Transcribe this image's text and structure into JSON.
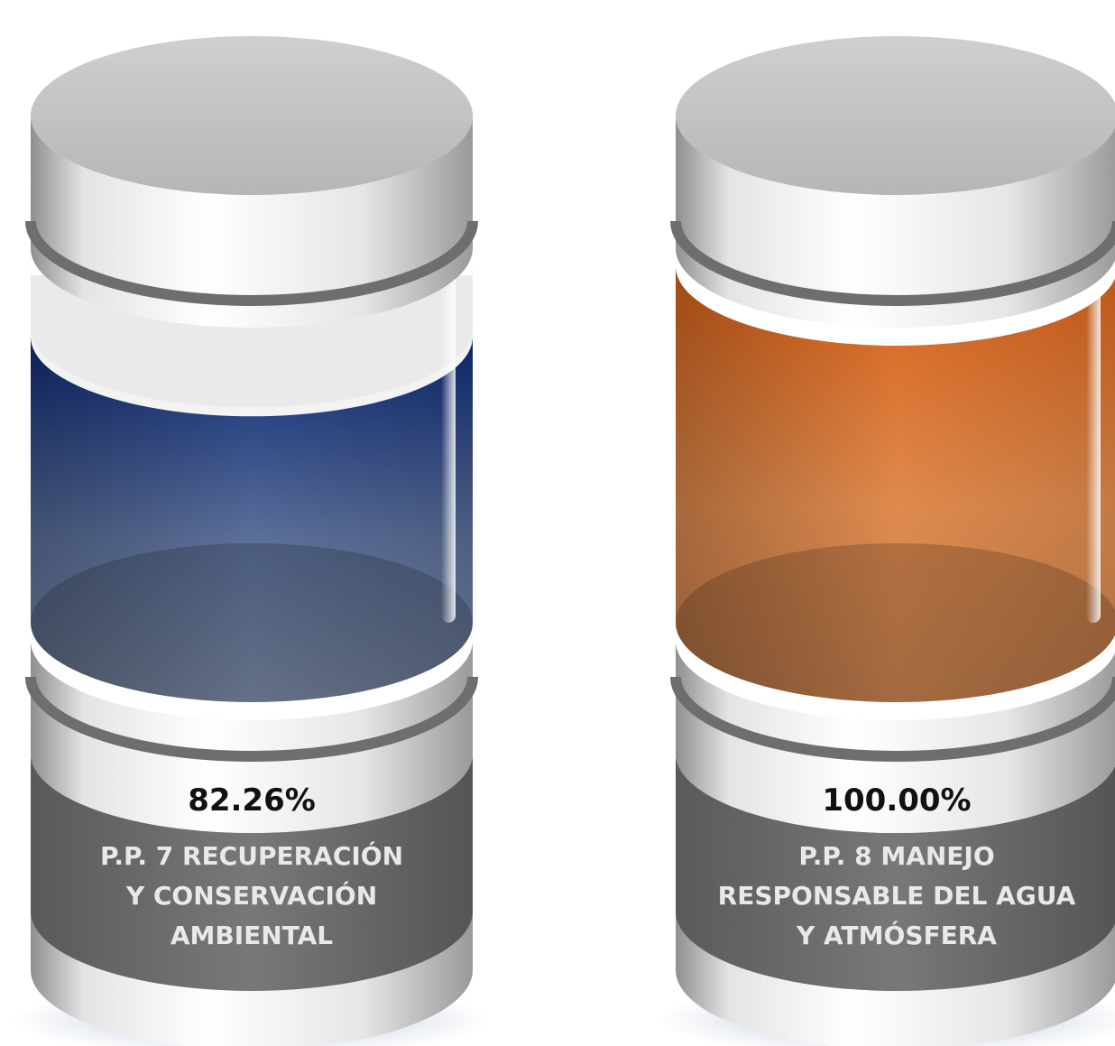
{
  "chart_data": {
    "type": "bar",
    "style": "3d-cylinder",
    "categories": [
      "P.P. 7 RECUPERACIÓN Y CONSERVACIÓN AMBIENTAL",
      "P.P. 8 MANEJO RESPONSABLE DEL AGUA Y ATMÓSFERA"
    ],
    "values": [
      82.26,
      100.0
    ],
    "value_labels": [
      "82.26%",
      "100.00%"
    ],
    "label_lines": [
      [
        "P.P. 7 RECUPERACIÓN",
        "Y CONSERVACIÓN",
        "AMBIENTAL"
      ],
      [
        "P.P. 8 MANEJO",
        "RESPONSABLE DEL AGUA",
        "Y ATMÓSFERA"
      ]
    ],
    "ylim": [
      0,
      100
    ],
    "colors": [
      "#0d2a78",
      "#d8621a"
    ]
  }
}
